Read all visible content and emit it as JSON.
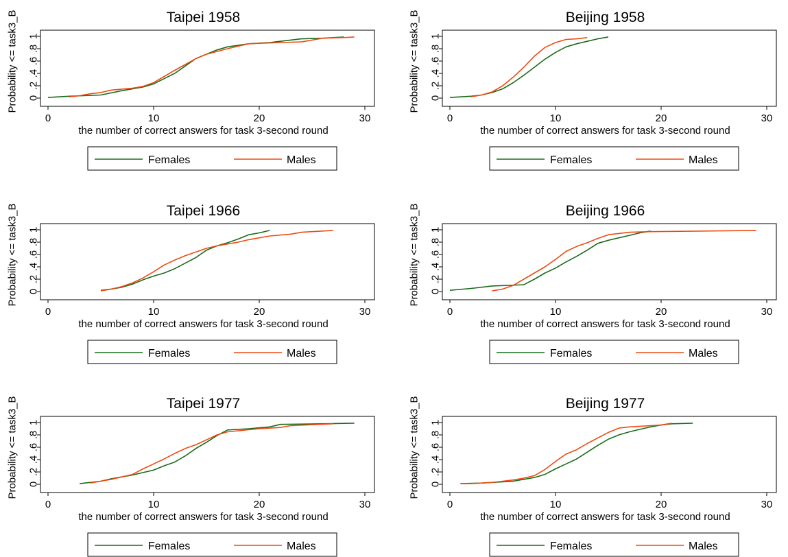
{
  "colors": {
    "females": "#1a6b1a",
    "males": "#ee4a10",
    "axis": "#000000",
    "background": "#ffffff"
  },
  "chart_data": [
    {
      "type": "line",
      "title": "Taipei 1958",
      "xlabel": "the number of correct answers for task 3-second round",
      "ylabel": "Probability <= task3_B",
      "xlim": [
        0,
        30
      ],
      "ylim": [
        0,
        1
      ],
      "xticks": [
        "0",
        "10",
        "20",
        "30"
      ],
      "yticks": [
        "0",
        ".2",
        ".4",
        ".6",
        ".8",
        "1"
      ],
      "legend": {
        "placement": "bottom",
        "entries": [
          "Females",
          "Males"
        ]
      },
      "series": [
        {
          "name": "Females",
          "points": [
            [
              0,
              0.01
            ],
            [
              2,
              0.03
            ],
            [
              5,
              0.05
            ],
            [
              7,
              0.12
            ],
            [
              9,
              0.18
            ],
            [
              10,
              0.23
            ],
            [
              12,
              0.4
            ],
            [
              13,
              0.52
            ],
            [
              14,
              0.64
            ],
            [
              16,
              0.78
            ],
            [
              17,
              0.83
            ],
            [
              19,
              0.88
            ],
            [
              21,
              0.9
            ],
            [
              22,
              0.92
            ],
            [
              24,
              0.96
            ],
            [
              26,
              0.97
            ],
            [
              28,
              0.99
            ]
          ]
        },
        {
          "name": "Males",
          "points": [
            [
              2,
              0.02
            ],
            [
              3,
              0.04
            ],
            [
              4,
              0.07
            ],
            [
              5,
              0.09
            ],
            [
              6,
              0.13
            ],
            [
              8,
              0.16
            ],
            [
              9,
              0.19
            ],
            [
              10,
              0.25
            ],
            [
              12,
              0.45
            ],
            [
              14,
              0.64
            ],
            [
              15,
              0.71
            ],
            [
              17,
              0.8
            ],
            [
              19,
              0.88
            ],
            [
              22,
              0.9
            ],
            [
              24,
              0.91
            ],
            [
              25,
              0.94
            ],
            [
              26,
              0.97
            ],
            [
              28,
              0.98
            ],
            [
              29,
              0.99
            ]
          ]
        }
      ]
    },
    {
      "type": "line",
      "title": "Beijing 1958",
      "xlabel": "the number of correct answers for task 3-second round",
      "ylabel": "Probability <= task3_B",
      "xlim": [
        0,
        30
      ],
      "ylim": [
        0,
        1
      ],
      "xticks": [
        "0",
        "10",
        "20",
        "30"
      ],
      "yticks": [
        "0",
        ".2",
        ".4",
        ".6",
        ".8",
        "1"
      ],
      "legend": {
        "placement": "bottom",
        "entries": [
          "Females",
          "Males"
        ]
      },
      "series": [
        {
          "name": "Females",
          "points": [
            [
              0,
              0.01
            ],
            [
              2,
              0.03
            ],
            [
              3,
              0.05
            ],
            [
              4,
              0.09
            ],
            [
              5,
              0.15
            ],
            [
              6,
              0.25
            ],
            [
              7,
              0.37
            ],
            [
              8,
              0.5
            ],
            [
              9,
              0.63
            ],
            [
              10,
              0.74
            ],
            [
              11,
              0.83
            ],
            [
              12,
              0.88
            ],
            [
              13,
              0.92
            ],
            [
              14,
              0.96
            ],
            [
              15,
              0.99
            ]
          ]
        },
        {
          "name": "Males",
          "points": [
            [
              2,
              0.02
            ],
            [
              3,
              0.05
            ],
            [
              4,
              0.1
            ],
            [
              5,
              0.2
            ],
            [
              6,
              0.34
            ],
            [
              7,
              0.5
            ],
            [
              8,
              0.68
            ],
            [
              9,
              0.82
            ],
            [
              10,
              0.9
            ],
            [
              11,
              0.95
            ],
            [
              12,
              0.96
            ],
            [
              13,
              0.98
            ]
          ]
        }
      ]
    },
    {
      "type": "line",
      "title": "Taipei 1966",
      "xlabel": "the number of correct answers for task 3-second round",
      "ylabel": "Probability <= task3_B",
      "xlim": [
        0,
        30
      ],
      "ylim": [
        0,
        1
      ],
      "xticks": [
        "0",
        "10",
        "20",
        "30"
      ],
      "yticks": [
        "0",
        ".2",
        ".4",
        ".6",
        ".8",
        "1"
      ],
      "legend": {
        "placement": "bottom",
        "entries": [
          "Females",
          "Males"
        ]
      },
      "series": [
        {
          "name": "Females",
          "points": [
            [
              5,
              0.02
            ],
            [
              6,
              0.04
            ],
            [
              7,
              0.07
            ],
            [
              8,
              0.12
            ],
            [
              9,
              0.19
            ],
            [
              10,
              0.25
            ],
            [
              11,
              0.3
            ],
            [
              12,
              0.37
            ],
            [
              13,
              0.46
            ],
            [
              14,
              0.55
            ],
            [
              15,
              0.67
            ],
            [
              16,
              0.74
            ],
            [
              17,
              0.79
            ],
            [
              18,
              0.85
            ],
            [
              19,
              0.92
            ],
            [
              20,
              0.95
            ],
            [
              21,
              0.99
            ]
          ]
        },
        {
          "name": "Males",
          "points": [
            [
              5,
              0.01
            ],
            [
              6,
              0.04
            ],
            [
              7,
              0.08
            ],
            [
              8,
              0.14
            ],
            [
              9,
              0.22
            ],
            [
              10,
              0.32
            ],
            [
              11,
              0.43
            ],
            [
              12,
              0.51
            ],
            [
              13,
              0.58
            ],
            [
              14,
              0.64
            ],
            [
              15,
              0.7
            ],
            [
              16,
              0.74
            ],
            [
              17,
              0.77
            ],
            [
              18,
              0.8
            ],
            [
              19,
              0.84
            ],
            [
              20,
              0.87
            ],
            [
              21,
              0.9
            ],
            [
              23,
              0.93
            ],
            [
              24,
              0.96
            ],
            [
              27,
              0.99
            ]
          ]
        }
      ]
    },
    {
      "type": "line",
      "title": "Beijing 1966",
      "xlabel": "the number of correct answers for task 3-second round",
      "ylabel": "Probability <= task3_B",
      "xlim": [
        0,
        30
      ],
      "ylim": [
        0,
        1
      ],
      "xticks": [
        "0",
        "10",
        "20",
        "30"
      ],
      "yticks": [
        "0",
        ".2",
        ".4",
        ".6",
        ".8",
        "1"
      ],
      "legend": {
        "placement": "bottom",
        "entries": [
          "Females",
          "Males"
        ]
      },
      "series": [
        {
          "name": "Females",
          "points": [
            [
              0,
              0.02
            ],
            [
              2,
              0.05
            ],
            [
              4,
              0.09
            ],
            [
              7,
              0.11
            ],
            [
              8,
              0.2
            ],
            [
              9,
              0.3
            ],
            [
              10,
              0.38
            ],
            [
              11,
              0.48
            ],
            [
              12,
              0.57
            ],
            [
              13,
              0.67
            ],
            [
              14,
              0.78
            ],
            [
              15,
              0.83
            ],
            [
              16,
              0.87
            ],
            [
              17,
              0.91
            ],
            [
              18,
              0.95
            ],
            [
              19,
              0.98
            ]
          ]
        },
        {
          "name": "Males",
          "points": [
            [
              4,
              0.01
            ],
            [
              5,
              0.04
            ],
            [
              6,
              0.1
            ],
            [
              7,
              0.2
            ],
            [
              8,
              0.3
            ],
            [
              9,
              0.4
            ],
            [
              10,
              0.52
            ],
            [
              11,
              0.65
            ],
            [
              12,
              0.73
            ],
            [
              13,
              0.79
            ],
            [
              14,
              0.86
            ],
            [
              15,
              0.92
            ],
            [
              17,
              0.96
            ],
            [
              19,
              0.97
            ],
            [
              29,
              0.99
            ]
          ]
        }
      ]
    },
    {
      "type": "line",
      "title": "Taipei 1977",
      "xlabel": "the number of correct answers for task 3-second round",
      "ylabel": "Probability <= task3_B",
      "xlim": [
        0,
        30
      ],
      "ylim": [
        0,
        1
      ],
      "xticks": [
        "0",
        "10",
        "20",
        "30"
      ],
      "yticks": [
        "0",
        ".2",
        ".4",
        ".6",
        ".8",
        "1"
      ],
      "legend": {
        "placement": "bottom",
        "entries": [
          "Females",
          "Males"
        ]
      },
      "series": [
        {
          "name": "Females",
          "points": [
            [
              3,
              0.01
            ],
            [
              4,
              0.03
            ],
            [
              5,
              0.05
            ],
            [
              6,
              0.09
            ],
            [
              7,
              0.12
            ],
            [
              8,
              0.15
            ],
            [
              9,
              0.19
            ],
            [
              10,
              0.23
            ],
            [
              11,
              0.3
            ],
            [
              12,
              0.36
            ],
            [
              13,
              0.46
            ],
            [
              14,
              0.58
            ],
            [
              15,
              0.68
            ],
            [
              16,
              0.79
            ],
            [
              17,
              0.88
            ],
            [
              19,
              0.9
            ],
            [
              21,
              0.93
            ],
            [
              22,
              0.97
            ],
            [
              26,
              0.98
            ],
            [
              29,
              0.99
            ]
          ]
        },
        {
          "name": "Males",
          "points": [
            [
              4,
              0.02
            ],
            [
              5,
              0.05
            ],
            [
              6,
              0.08
            ],
            [
              7,
              0.12
            ],
            [
              8,
              0.16
            ],
            [
              9,
              0.25
            ],
            [
              10,
              0.33
            ],
            [
              11,
              0.41
            ],
            [
              12,
              0.5
            ],
            [
              13,
              0.58
            ],
            [
              14,
              0.64
            ],
            [
              15,
              0.72
            ],
            [
              16,
              0.8
            ],
            [
              17,
              0.85
            ],
            [
              20,
              0.9
            ],
            [
              22,
              0.92
            ],
            [
              23,
              0.95
            ],
            [
              27,
              0.98
            ]
          ]
        }
      ]
    },
    {
      "type": "line",
      "title": "Beijing 1977",
      "xlabel": "the number of correct answers for task 3-second round",
      "ylabel": "Probability <= task3_B",
      "xlim": [
        0,
        30
      ],
      "ylim": [
        0,
        1
      ],
      "xticks": [
        "0",
        "10",
        "20",
        "30"
      ],
      "yticks": [
        "0",
        ".2",
        ".4",
        ".6",
        ".8",
        "1"
      ],
      "legend": {
        "placement": "bottom",
        "entries": [
          "Females",
          "Males"
        ]
      },
      "series": [
        {
          "name": "Females",
          "points": [
            [
              1,
              0.01
            ],
            [
              3,
              0.02
            ],
            [
              4,
              0.03
            ],
            [
              5,
              0.04
            ],
            [
              6,
              0.05
            ],
            [
              7,
              0.08
            ],
            [
              8,
              0.11
            ],
            [
              9,
              0.16
            ],
            [
              10,
              0.25
            ],
            [
              11,
              0.33
            ],
            [
              12,
              0.41
            ],
            [
              13,
              0.52
            ],
            [
              14,
              0.63
            ],
            [
              15,
              0.73
            ],
            [
              16,
              0.8
            ],
            [
              17,
              0.85
            ],
            [
              18,
              0.89
            ],
            [
              19,
              0.93
            ],
            [
              20,
              0.96
            ],
            [
              21,
              0.98
            ],
            [
              23,
              0.99
            ]
          ]
        },
        {
          "name": "Males",
          "points": [
            [
              1,
              0.01
            ],
            [
              2,
              0.01
            ],
            [
              4,
              0.03
            ],
            [
              5,
              0.05
            ],
            [
              6,
              0.07
            ],
            [
              7,
              0.1
            ],
            [
              8,
              0.14
            ],
            [
              9,
              0.24
            ],
            [
              10,
              0.37
            ],
            [
              11,
              0.49
            ],
            [
              12,
              0.56
            ],
            [
              13,
              0.66
            ],
            [
              14,
              0.75
            ],
            [
              15,
              0.84
            ],
            [
              16,
              0.91
            ],
            [
              17,
              0.93
            ],
            [
              18,
              0.94
            ],
            [
              19,
              0.95
            ],
            [
              20,
              0.96
            ],
            [
              21,
              0.99
            ]
          ]
        }
      ]
    }
  ]
}
